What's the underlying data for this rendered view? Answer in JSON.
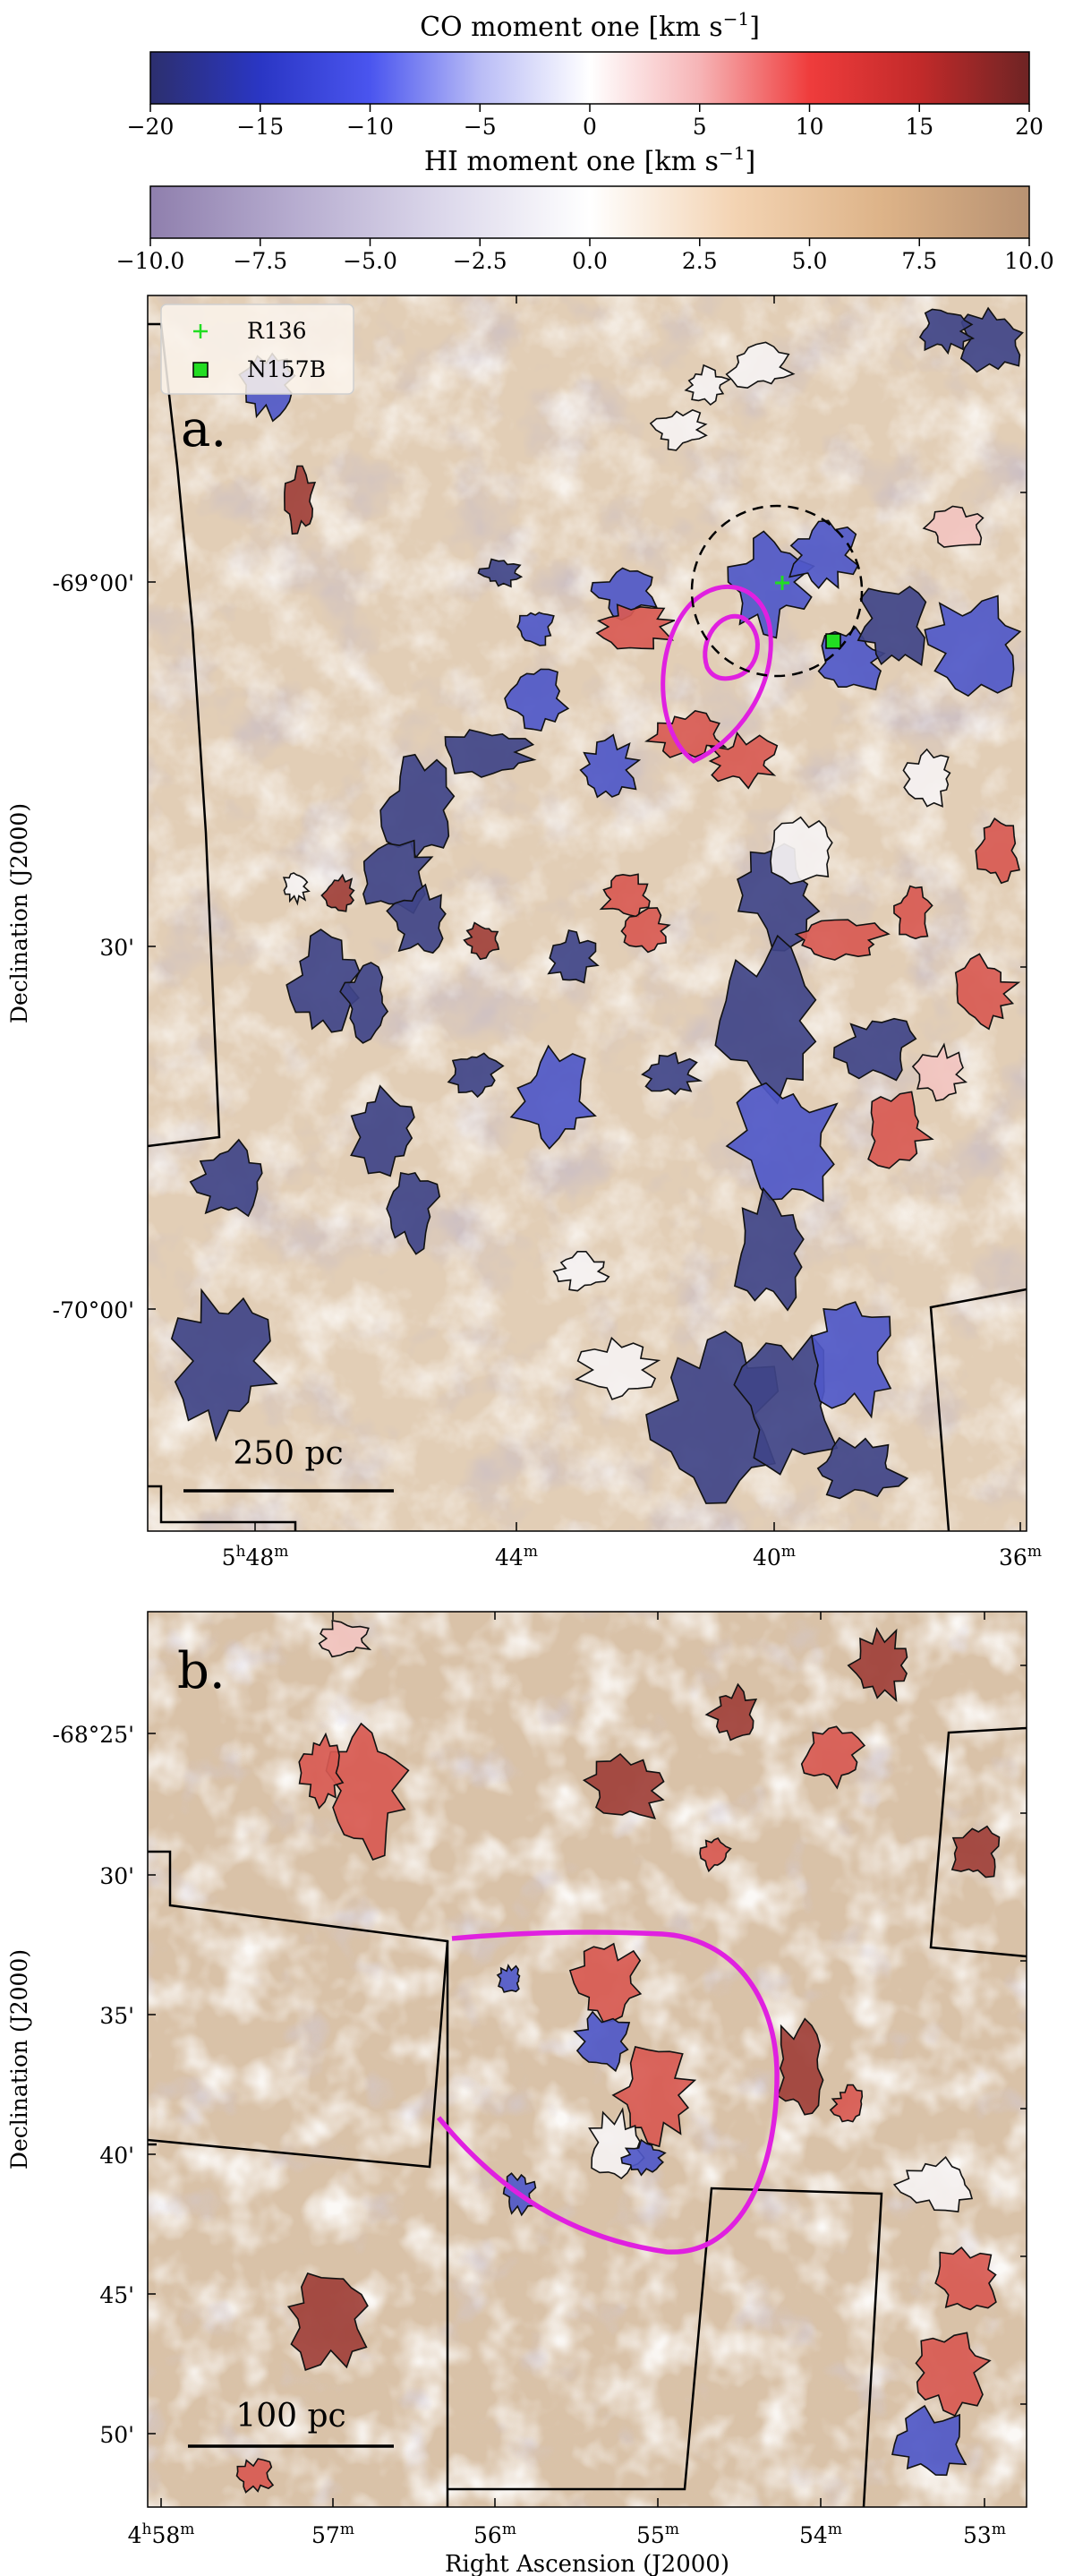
{
  "colorbars": [
    {
      "label": "CO moment one [km s",
      "label_sup": "−1",
      "label_end": "]",
      "min": -20,
      "max": 20,
      "ticks": [
        -20,
        -15,
        -10,
        -5,
        0,
        5,
        10,
        15,
        20
      ],
      "tick_labels": [
        "−20",
        "−15",
        "−10",
        "−5",
        "0",
        "5",
        "10",
        "15",
        "20"
      ],
      "colors": [
        "#2c2f6e",
        "#2a36c4",
        "#4a55ef",
        "#b9bcf6",
        "#ffffff",
        "#f6b4b6",
        "#ef3c3c",
        "#c22a2a",
        "#6e2424"
      ]
    },
    {
      "label": "HI moment one [km s",
      "label_sup": "−1",
      "label_end": "]",
      "min": -10,
      "max": 10,
      "ticks": [
        -10,
        -7.5,
        -5,
        -2.5,
        0,
        2.5,
        5,
        7.5,
        10
      ],
      "tick_labels": [
        "−10.0",
        "−7.5",
        "−5.0",
        "−2.5",
        "0.0",
        "2.5",
        "5.0",
        "7.5",
        "10.0"
      ],
      "colors": [
        "#8f7fad",
        "#b7add0",
        "#dcd8eb",
        "#ffffff",
        "#f3d3b2",
        "#ddb388",
        "#b89272"
      ]
    }
  ],
  "panels": {
    "a": {
      "letter": "a.",
      "ylabel": "Declination (J2000)",
      "yticks": [
        "-69°00'",
        "30'",
        "-70°00'"
      ],
      "xticks": [
        {
          "main": "5",
          "sup1": "h",
          "mid": "48",
          "sup2": "m"
        },
        {
          "main": "44",
          "sup2": "m"
        },
        {
          "main": "40",
          "sup2": "m"
        },
        {
          "main": "36",
          "sup2": "m"
        }
      ],
      "scalebar": "250 pc",
      "legend": [
        "R136",
        "N157B"
      ]
    },
    "b": {
      "letter": "b.",
      "ylabel": "Declination (J2000)",
      "xlabel": "Right Ascension (J2000)",
      "yticks": [
        "-68°25'",
        "30'",
        "35'",
        "40'",
        "45'",
        "50'"
      ],
      "xticks": [
        {
          "main": "4",
          "sup1": "h",
          "mid": "58",
          "sup2": "m"
        },
        {
          "main": "57",
          "sup2": "m"
        },
        {
          "main": "56",
          "sup2": "m"
        },
        {
          "main": "55",
          "sup2": "m"
        },
        {
          "main": "54",
          "sup2": "m"
        },
        {
          "main": "53",
          "sup2": "m"
        }
      ],
      "scalebar": "100 pc"
    }
  },
  "chart_data": {
    "type": "heatmap",
    "colorbars": [
      {
        "label": "CO moment one [km s−1]",
        "range": [
          -20,
          20
        ]
      },
      {
        "label": "HI moment one [km s−1]",
        "range": [
          -10,
          10
        ]
      }
    ],
    "panels": [
      {
        "letter": "a.",
        "x_axis": "Right Ascension (J2000)",
        "x_ticks": [
          "5h48m",
          "44m",
          "40m",
          "36m"
        ],
        "y_axis": "Declination (J2000)",
        "y_ticks": [
          "-69°00'",
          "30'",
          "-70°00'"
        ],
        "scalebar": "250 pc",
        "legend": [
          "R136",
          "N157B"
        ]
      },
      {
        "letter": "b.",
        "x_axis": "Right Ascension (J2000)",
        "x_ticks": [
          "4h58m",
          "57m",
          "56m",
          "55m",
          "54m",
          "53m"
        ],
        "y_axis": "Declination (J2000)",
        "y_ticks": [
          "-68°25'",
          "30'",
          "35'",
          "40'",
          "45'",
          "50'"
        ],
        "scalebar": "100 pc"
      }
    ]
  }
}
